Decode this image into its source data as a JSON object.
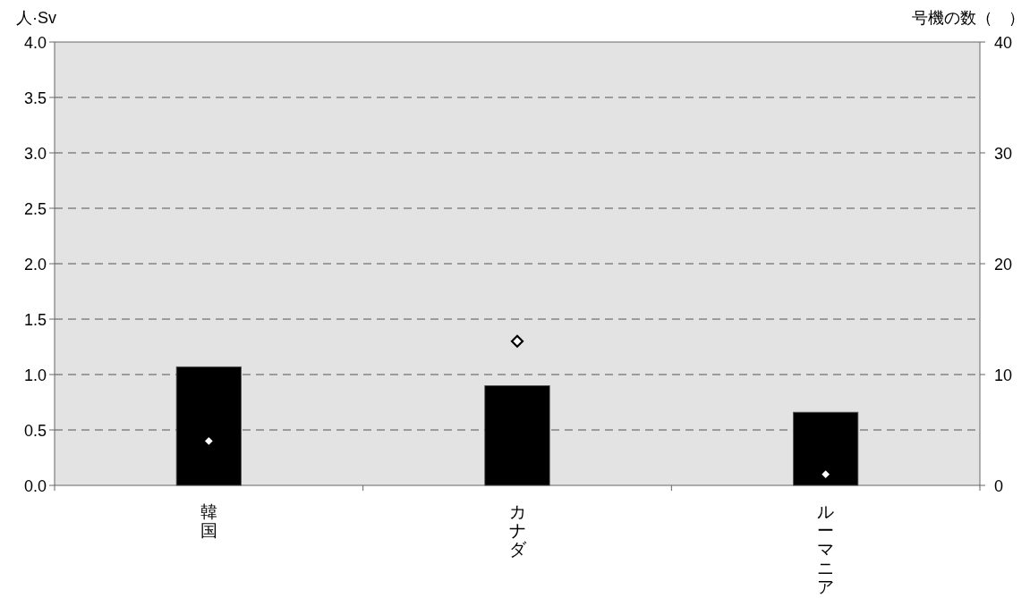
{
  "chart_data": {
    "type": "bar",
    "ylabel": "人·Sv",
    "y2label": "号機の数（　）",
    "categories": [
      "韓国",
      "カナダ",
      "ルーマニア"
    ],
    "series": [
      {
        "type": "bar",
        "color": "#000000",
        "values": [
          1.07,
          0.9,
          0.66
        ]
      },
      {
        "type": "scatter",
        "axis": "y2",
        "color": "#ffffff",
        "values": [
          4,
          13,
          1
        ]
      }
    ],
    "ylim": [
      0,
      4
    ],
    "yticks": [
      {
        "value": 0,
        "label": "0.0"
      },
      {
        "value": 0.5,
        "label": "0.5"
      },
      {
        "value": 1,
        "label": "1.0"
      },
      {
        "value": 1.5,
        "label": "1.5"
      },
      {
        "value": 2,
        "label": "2.0"
      },
      {
        "value": 2.5,
        "label": "2.5"
      },
      {
        "value": 3,
        "label": "3.0"
      },
      {
        "value": 3.5,
        "label": "3.5"
      },
      {
        "value": 4,
        "label": "4.0"
      }
    ],
    "y2lim": [
      0,
      40
    ],
    "y2ticks": [
      0,
      10,
      20,
      30,
      40
    ],
    "grid": "y",
    "marker": "diamond"
  }
}
